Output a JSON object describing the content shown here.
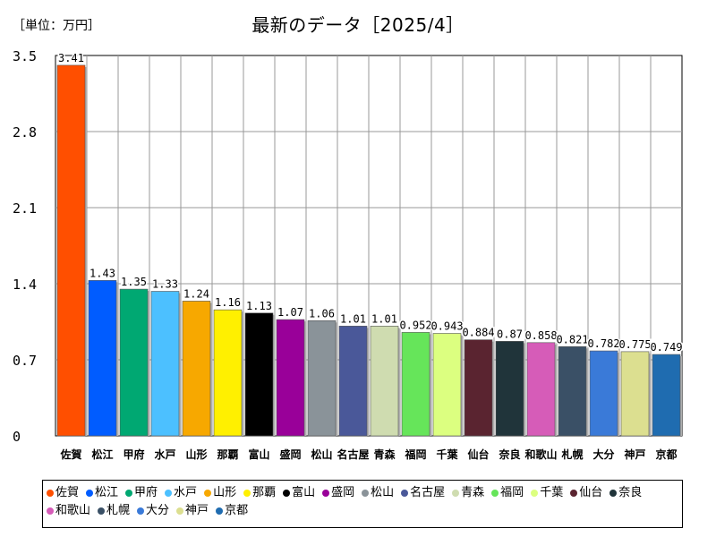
{
  "header": {
    "unit_label": "［単位：万円］",
    "title": "最新のデータ［2025/4］"
  },
  "chart_data": {
    "type": "bar",
    "title": "最新のデータ［2025/4］",
    "ylabel": "［単位：万円］",
    "xlabel": "",
    "ylim": [
      0,
      3.5
    ],
    "yticks": [
      "0",
      "0.7",
      "1.4",
      "2.1",
      "2.8",
      "3.5"
    ],
    "ytick_values": [
      0,
      0.7,
      1.4,
      2.1,
      2.8,
      3.5
    ],
    "grid": true,
    "legend_position": "bottom",
    "categories": [
      "佐賀",
      "松江",
      "甲府",
      "水戸",
      "山形",
      "那覇",
      "富山",
      "盛岡",
      "松山",
      "名古屋",
      "青森",
      "福岡",
      "千葉",
      "仙台",
      "奈良",
      "和歌山",
      "札幌",
      "大分",
      "神戸",
      "京都"
    ],
    "values": [
      3.41,
      1.43,
      1.35,
      1.33,
      1.24,
      1.16,
      1.13,
      1.07,
      1.06,
      1.01,
      1.01,
      0.952,
      0.943,
      0.884,
      0.87,
      0.858,
      0.821,
      0.782,
      0.775,
      0.749
    ],
    "value_labels": [
      "3.41",
      "1.43",
      "1.35",
      "1.33",
      "1.24",
      "1.16",
      "1.13",
      "1.07",
      "1.06",
      "1.01",
      "1.01",
      "0.952",
      "0.943",
      "0.884",
      "0.87",
      "0.858",
      "0.821",
      "0.782",
      "0.775",
      "0.749"
    ],
    "colors": [
      "#ff4f00",
      "#005cff",
      "#00a872",
      "#4cc0ff",
      "#f7a800",
      "#fff000",
      "#000000",
      "#990099",
      "#8a9399",
      "#4a5899",
      "#cfdcb0",
      "#66e55a",
      "#dcff80",
      "#5a2430",
      "#20343a",
      "#d65cb8",
      "#3a5066",
      "#3a7ad8",
      "#dcdf90",
      "#1f6cb0"
    ]
  }
}
